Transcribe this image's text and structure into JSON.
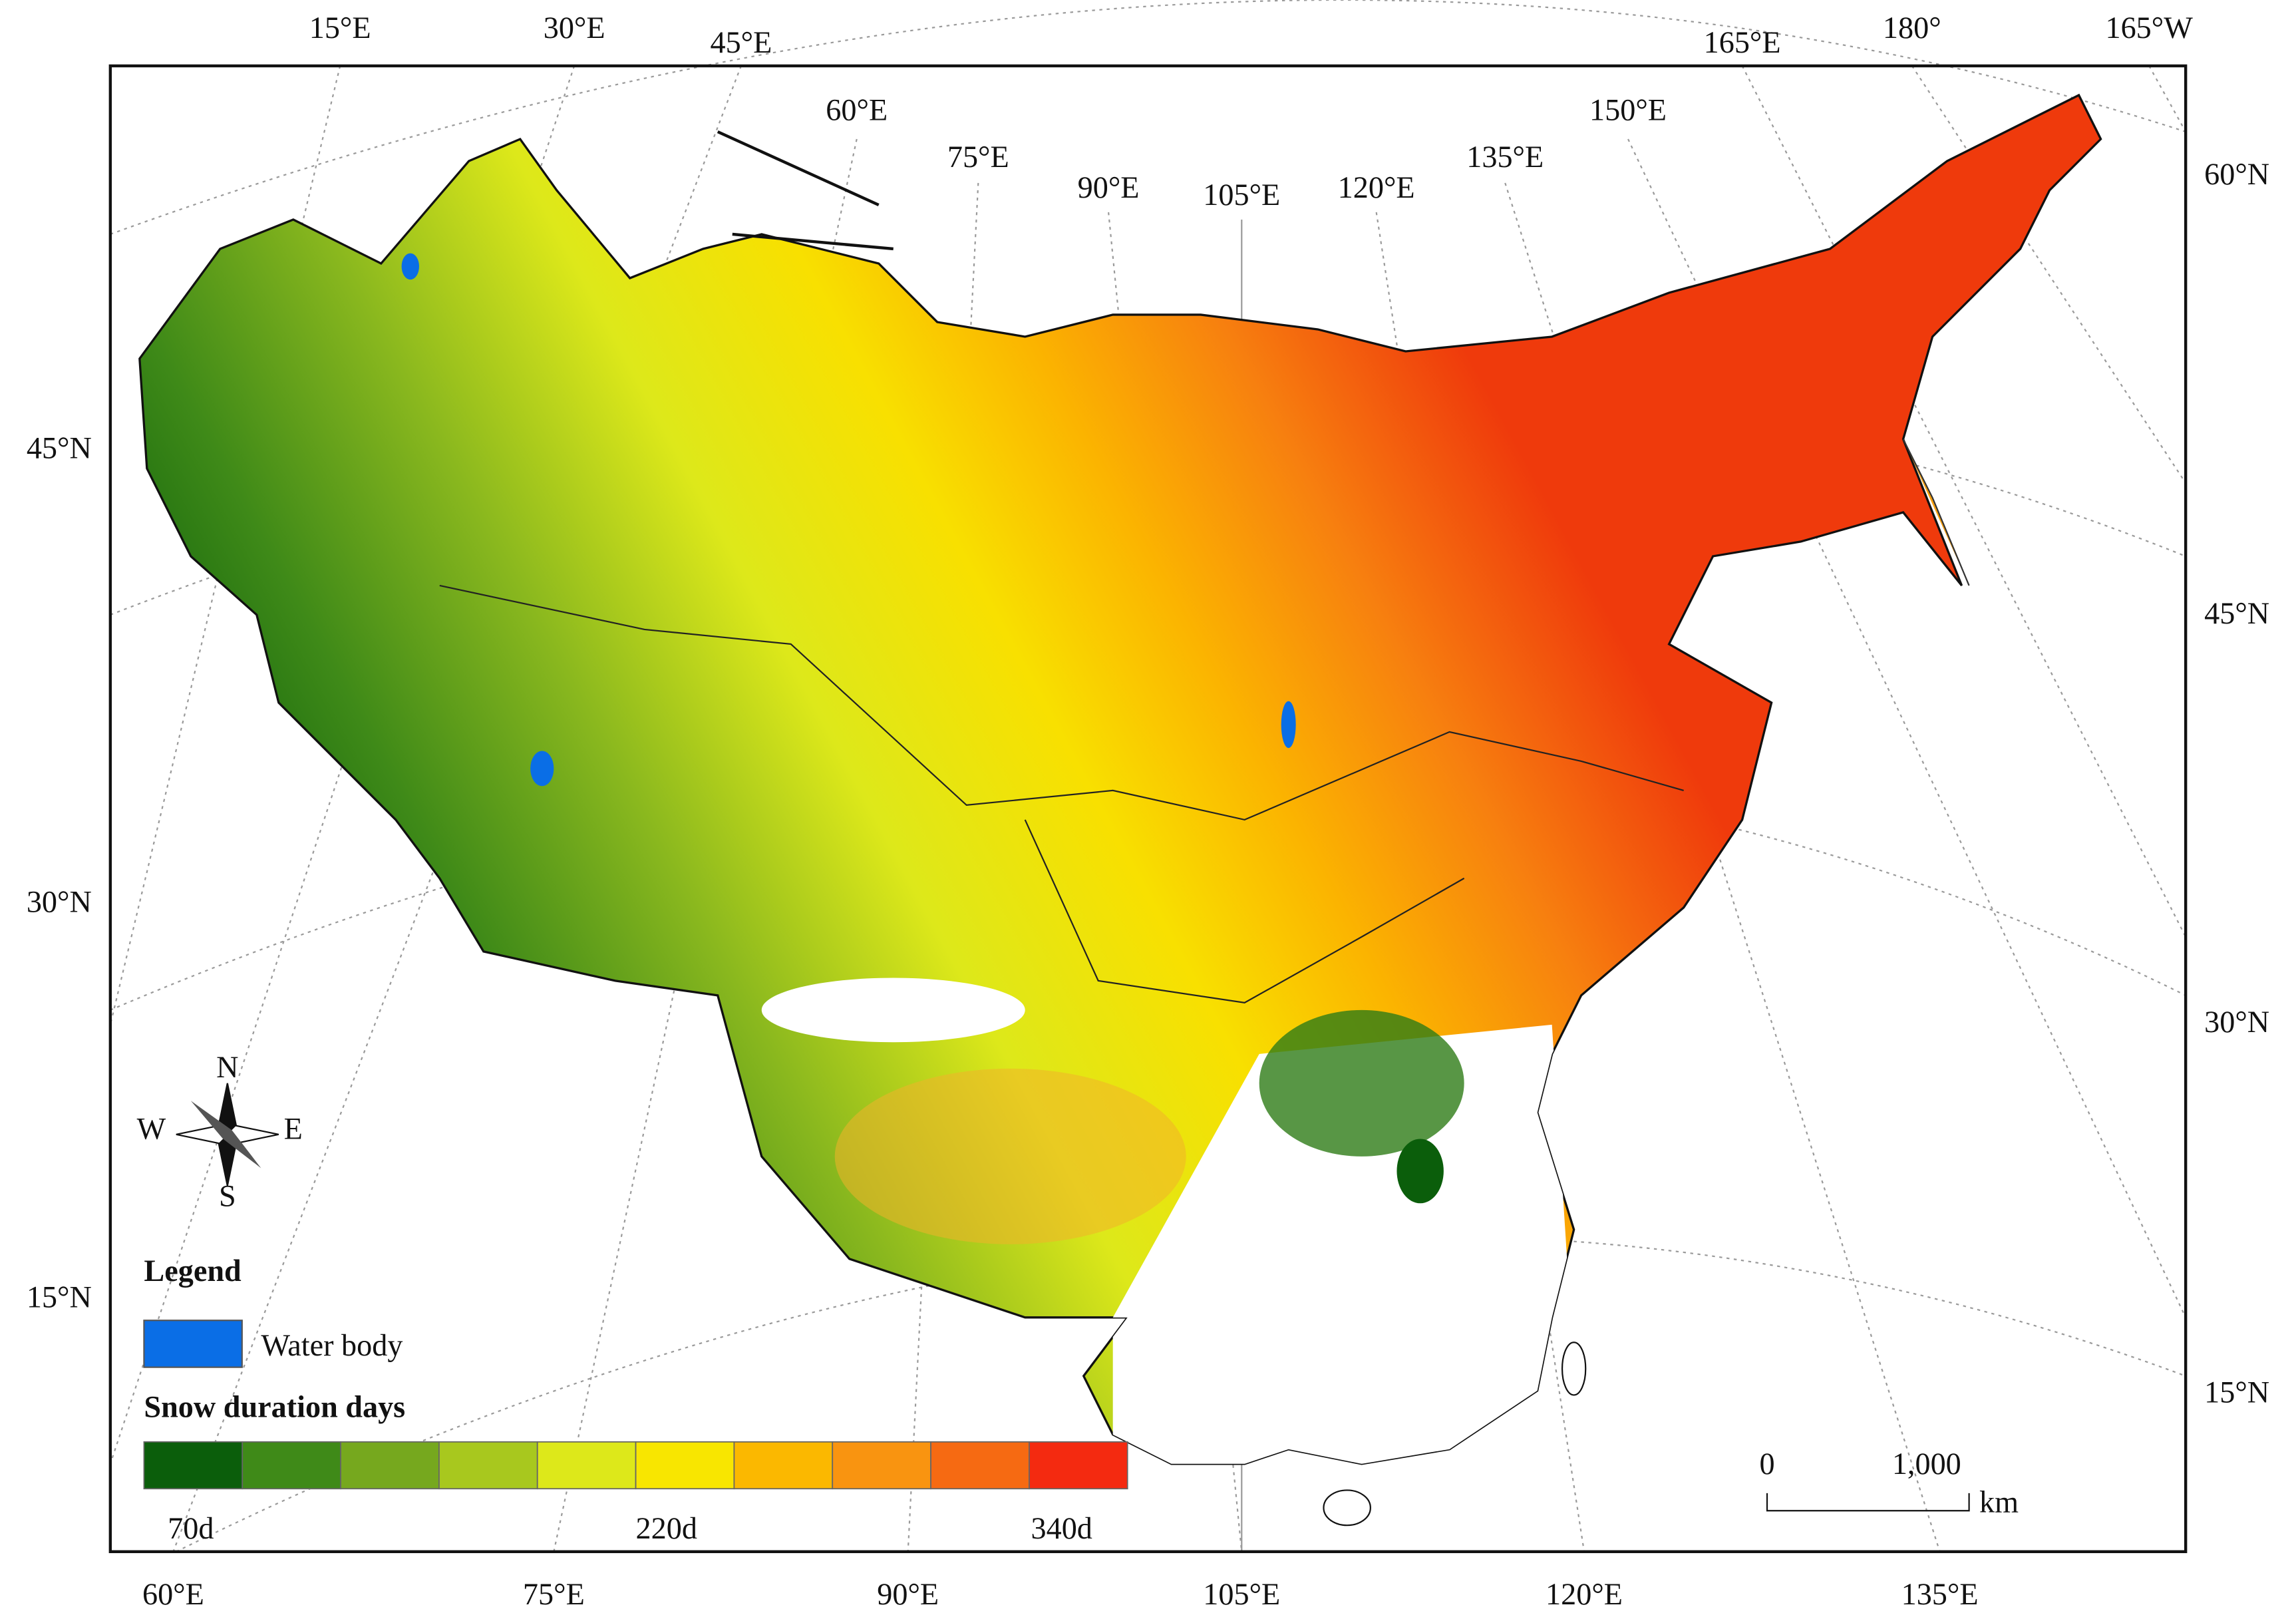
{
  "graticule": {
    "top": [
      "15°E",
      "30°E",
      "45°E",
      "60°E",
      "75°E",
      "90°E",
      "105°E",
      "120°E",
      "135°E",
      "150°E",
      "165°E",
      "180°",
      "165°W"
    ],
    "left": [
      "45°N",
      "30°N",
      "15°N"
    ],
    "right": [
      "60°N",
      "45°N",
      "30°N",
      "15°N"
    ],
    "bottom": [
      "60°E",
      "75°E",
      "90°E",
      "105°E",
      "120°E",
      "135°E"
    ]
  },
  "compass": {
    "north": "N",
    "east": "E",
    "south": "S",
    "west": "W"
  },
  "legend": {
    "title": "Legend",
    "water_body": "Water body",
    "snow_title": "Snow duration days",
    "colors": [
      "#0b5e0b",
      "#3f8a18",
      "#76a81e",
      "#a8c81e",
      "#dde81a",
      "#f8e600",
      "#fbb800",
      "#f99410",
      "#f66a12",
      "#f42a10"
    ],
    "ticks": [
      "70d",
      "220d",
      "340d"
    ]
  },
  "scale_bar": {
    "start": "0",
    "end": "1,000",
    "unit": "km"
  }
}
